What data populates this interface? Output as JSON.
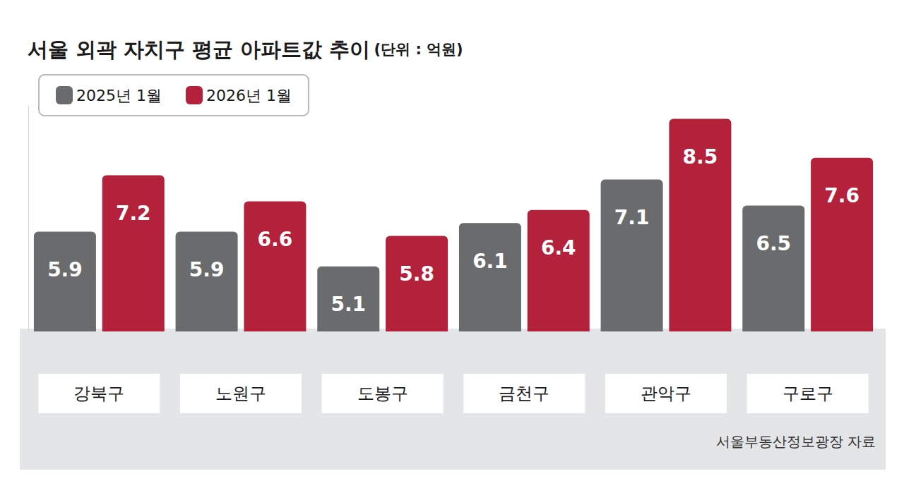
{
  "chart_data": {
    "type": "bar",
    "title": "서울 외곽 자치구 평균 아파트값 추이",
    "subtitle": "(단위 : 억원)",
    "annotations": [
      "서울부동산정보광장 자료"
    ],
    "categories": [
      "강북구",
      "노원구",
      "도봉구",
      "금천구",
      "관악구",
      "구로구"
    ],
    "series": [
      {
        "name": "2025년 1월",
        "color": "#6a6b6d",
        "values": [
          5.9,
          5.9,
          5.1,
          6.1,
          7.1,
          6.5
        ]
      },
      {
        "name": "2026년 1월",
        "color": "#b3213b",
        "values": [
          7.2,
          6.6,
          5.8,
          6.4,
          8.5,
          7.6
        ]
      }
    ],
    "ylim": [
      3.6,
      8.8
    ],
    "grid": false,
    "legend": "top-left",
    "data_labels": true,
    "tick_labels": "x"
  }
}
